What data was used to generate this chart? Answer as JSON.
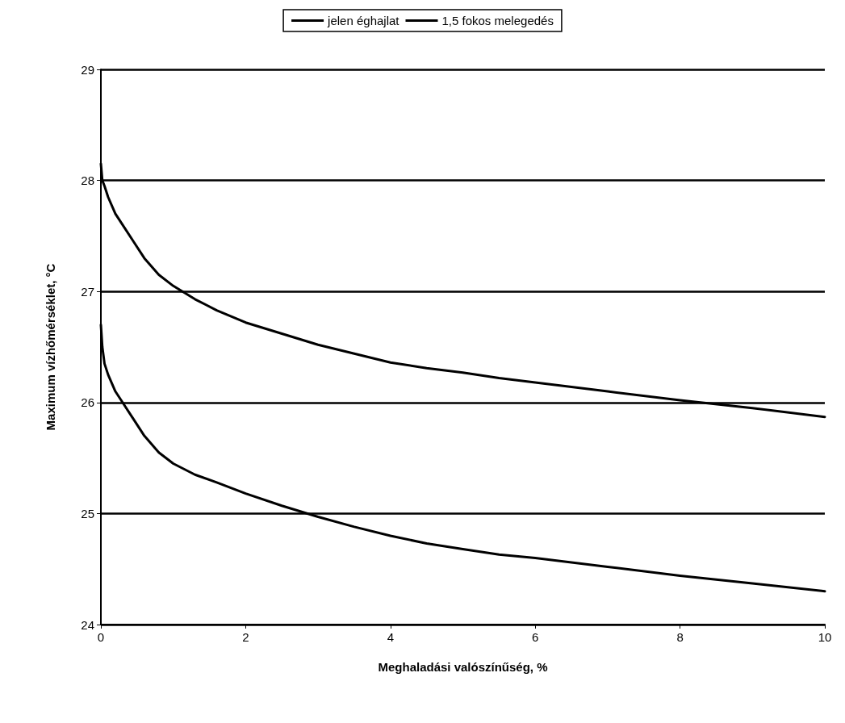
{
  "chart_data": {
    "type": "line",
    "xlabel": "Meghaladási valószínűség, %",
    "ylabel": "Maximum vízhőmérséklet, °C",
    "xlim": [
      0,
      10
    ],
    "xticks": [
      0,
      2,
      4,
      6,
      8,
      10
    ],
    "ylim": [
      24,
      29
    ],
    "yticks": [
      24,
      25,
      26,
      27,
      28,
      29
    ],
    "grid": "y",
    "legend": "top",
    "marker": "none",
    "line_style": "solid",
    "series": [
      {
        "name": "jelen éghajlat",
        "color": "#000000",
        "x": [
          0,
          0.02,
          0.05,
          0.1,
          0.2,
          0.3,
          0.45,
          0.6,
          0.8,
          1,
          1.3,
          1.6,
          2,
          2.5,
          3,
          3.5,
          4,
          4.5,
          5,
          5.5,
          6,
          7,
          8,
          9,
          10
        ],
        "values": [
          26.7,
          26.5,
          26.35,
          26.25,
          26.1,
          26.0,
          25.85,
          25.7,
          25.55,
          25.45,
          25.35,
          25.28,
          25.18,
          25.07,
          24.97,
          24.88,
          24.8,
          24.73,
          24.68,
          24.63,
          24.6,
          24.52,
          24.44,
          24.37,
          24.3
        ]
      },
      {
        "name": "1,5 fokos melegedés",
        "color": "#000000",
        "x": [
          0,
          0.02,
          0.05,
          0.1,
          0.2,
          0.3,
          0.45,
          0.6,
          0.8,
          1,
          1.3,
          1.6,
          2,
          2.5,
          3,
          3.5,
          4,
          4.5,
          5,
          5.5,
          6,
          7,
          8,
          9,
          10
        ],
        "values": [
          28.15,
          28.0,
          27.95,
          27.85,
          27.7,
          27.6,
          27.45,
          27.3,
          27.15,
          27.05,
          26.93,
          26.83,
          26.72,
          26.62,
          26.52,
          26.44,
          26.36,
          26.31,
          26.27,
          26.22,
          26.18,
          26.1,
          26.02,
          25.95,
          25.87
        ]
      }
    ]
  }
}
